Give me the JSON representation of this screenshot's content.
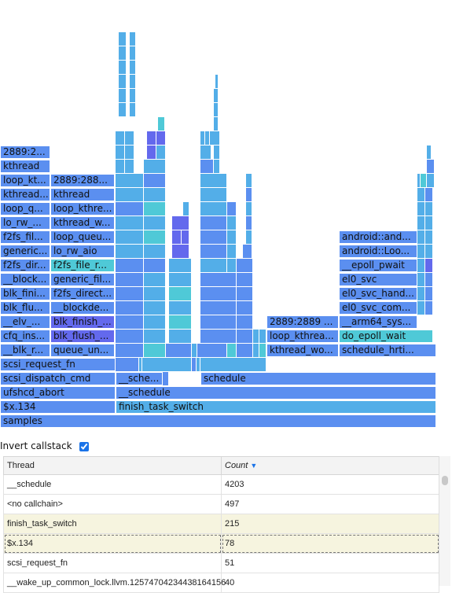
{
  "colors": {
    "blue": "#5b8ff0",
    "light": "#53aee8",
    "cyan": "#4fc9d7",
    "indigo": "#6369ed"
  },
  "flame": {
    "labels": {
      "samples": "samples",
      "x134": "$x.134",
      "ufshcd_abort": "ufshcd_abort",
      "scsi_dispatch": "scsi_dispatch_cmd",
      "scsi_request": "scsi_request_fn",
      "blk_r": "__blk_r...",
      "cfq_ins": "cfq_ins...",
      "elv": "__elv_...",
      "blk_flu": "blk_flu...",
      "blk_fini": "blk_fini...",
      "block": "__block...",
      "f2fs_dir_a": "f2fs_dir...",
      "generic_a": "generic...",
      "f2fs_fil": "f2fs_fil...",
      "lo_rw_a": "lo_rw_...",
      "loop_q": "loop_q...",
      "kthread_a": "kthread...",
      "loop_kt": "loop_kt...",
      "kthread_b": "kthread",
      "tid_a": "2889:2...",
      "queue_un": "queue_un...",
      "blk_flush": "blk_flush_...",
      "blk_finish": "blk_finish_...",
      "blockde": "__blockde...",
      "f2fs_direct": "f2fs_direct...",
      "generic_fil": "generic_fil...",
      "f2fs_file_r": "f2fs_file_r...",
      "lo_rw_aio": "lo_rw_aio",
      "loop_queu": "loop_queu...",
      "kthread_w": "kthread_w...",
      "loop_kthre": "loop_kthre...",
      "kthread_c": "kthread",
      "tid_b": "2889:288...",
      "finish_task": "finish_task_switch",
      "schedule_a": "__schedule",
      "sche": "__sche...",
      "schedule_b": "schedule",
      "kthread_wo": "kthread_wo...",
      "loop_kthrea": "loop_kthrea...",
      "tid_c": "2889:2889 ...",
      "schedule_hrti": "schedule_hrti...",
      "do_epoll": "do_epoll_wait",
      "arm64_sys": "__arm64_sys...",
      "el0_svc_com": "el0_svc_com...",
      "el0_svc_hand": "el0_svc_hand...",
      "el0_svc": "el0_svc",
      "epoll_pwait": "__epoll_pwait",
      "android_loo": "android::Loo...",
      "android_and": "android::and..."
    }
  },
  "invert": {
    "label": "Invert callstack",
    "checked": true
  },
  "table": {
    "columns": [
      "Thread",
      "Count"
    ],
    "rows": [
      {
        "thread": "__schedule",
        "count": "4203"
      },
      {
        "thread": "<no callchain>",
        "count": "497"
      },
      {
        "thread": "finish_task_switch",
        "count": "215"
      },
      {
        "thread": "$x.134",
        "count": "78"
      },
      {
        "thread": "scsi_request_fn",
        "count": "51"
      },
      {
        "thread": "__wake_up_common_lock.llvm.12574704234438164156",
        "count": "40"
      }
    ]
  }
}
